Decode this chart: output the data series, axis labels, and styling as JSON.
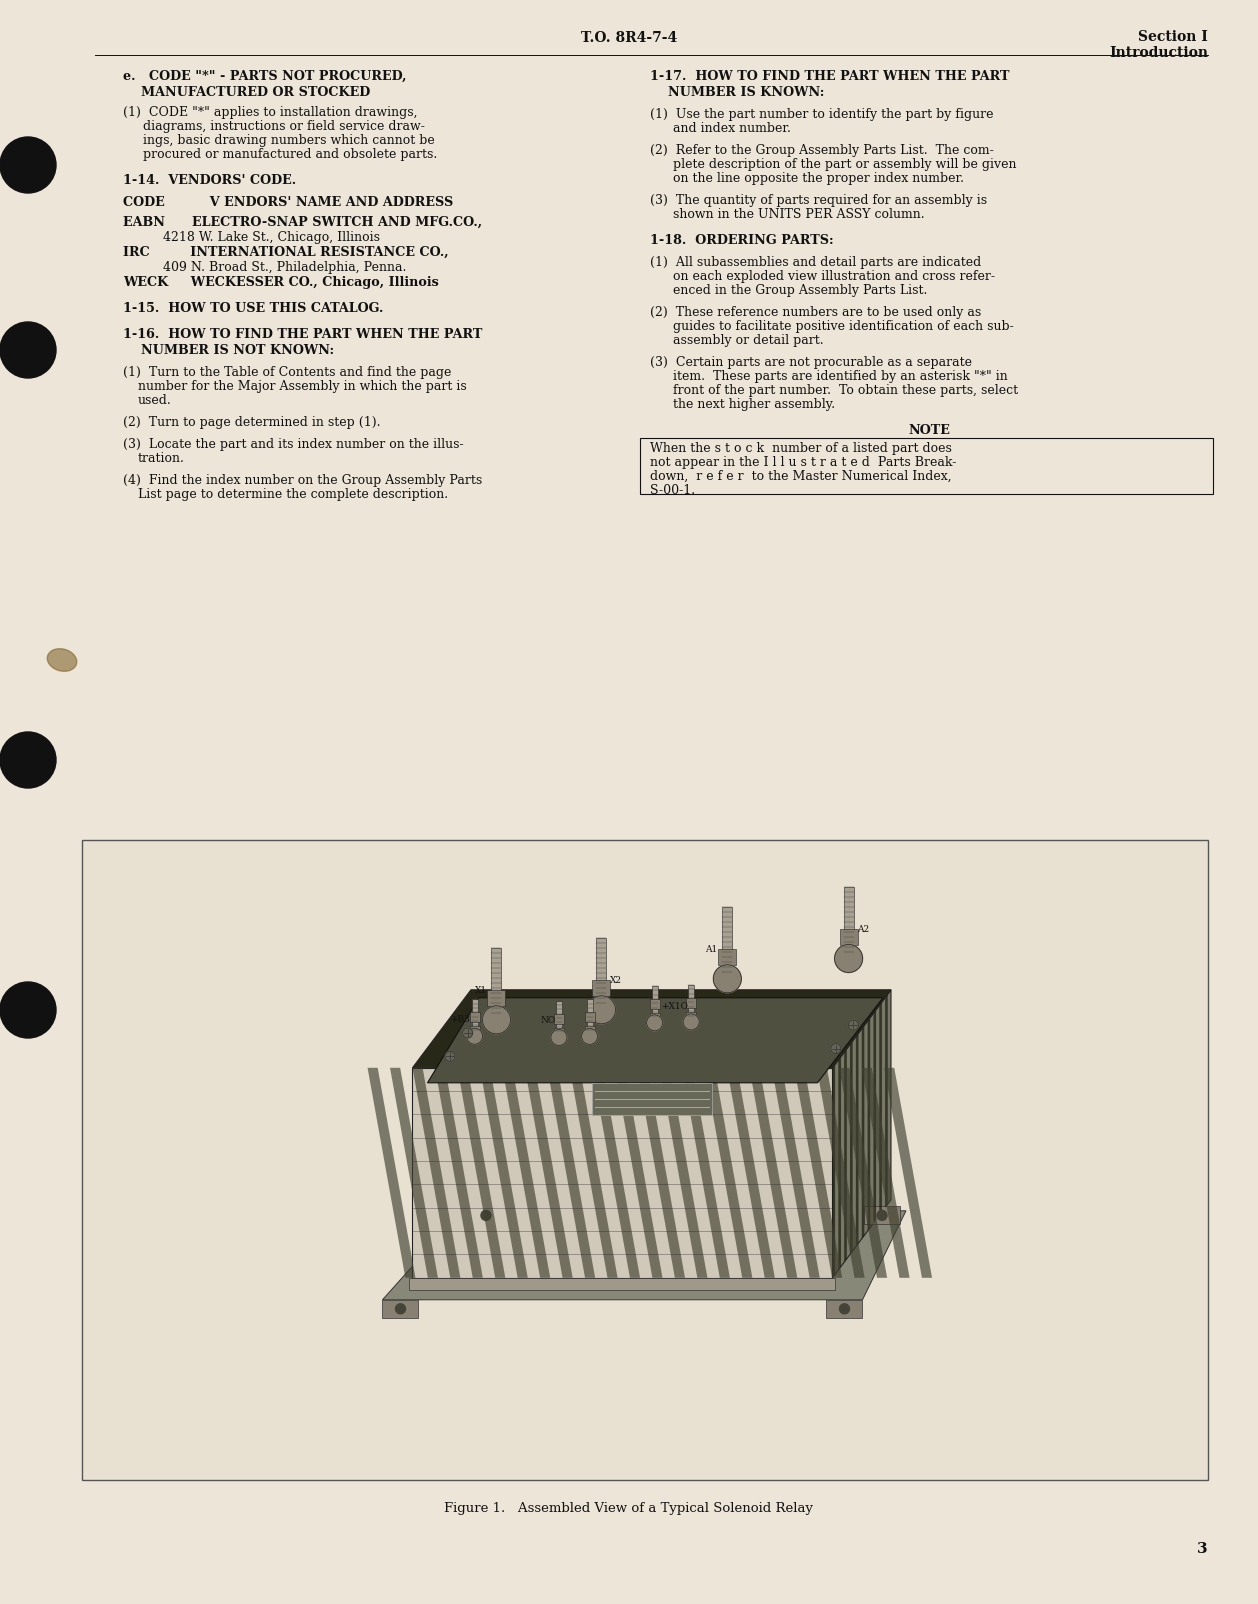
{
  "page_bg_color": "#ede5d8",
  "text_color": "#111111",
  "header_left": "T.O. 8R4-7-4",
  "header_right_line1": "Section I",
  "header_right_line2": "Introduction",
  "page_number": "3",
  "figure_caption": "Figure 1.   Assembled View of a Typical Solenoid Relay"
}
